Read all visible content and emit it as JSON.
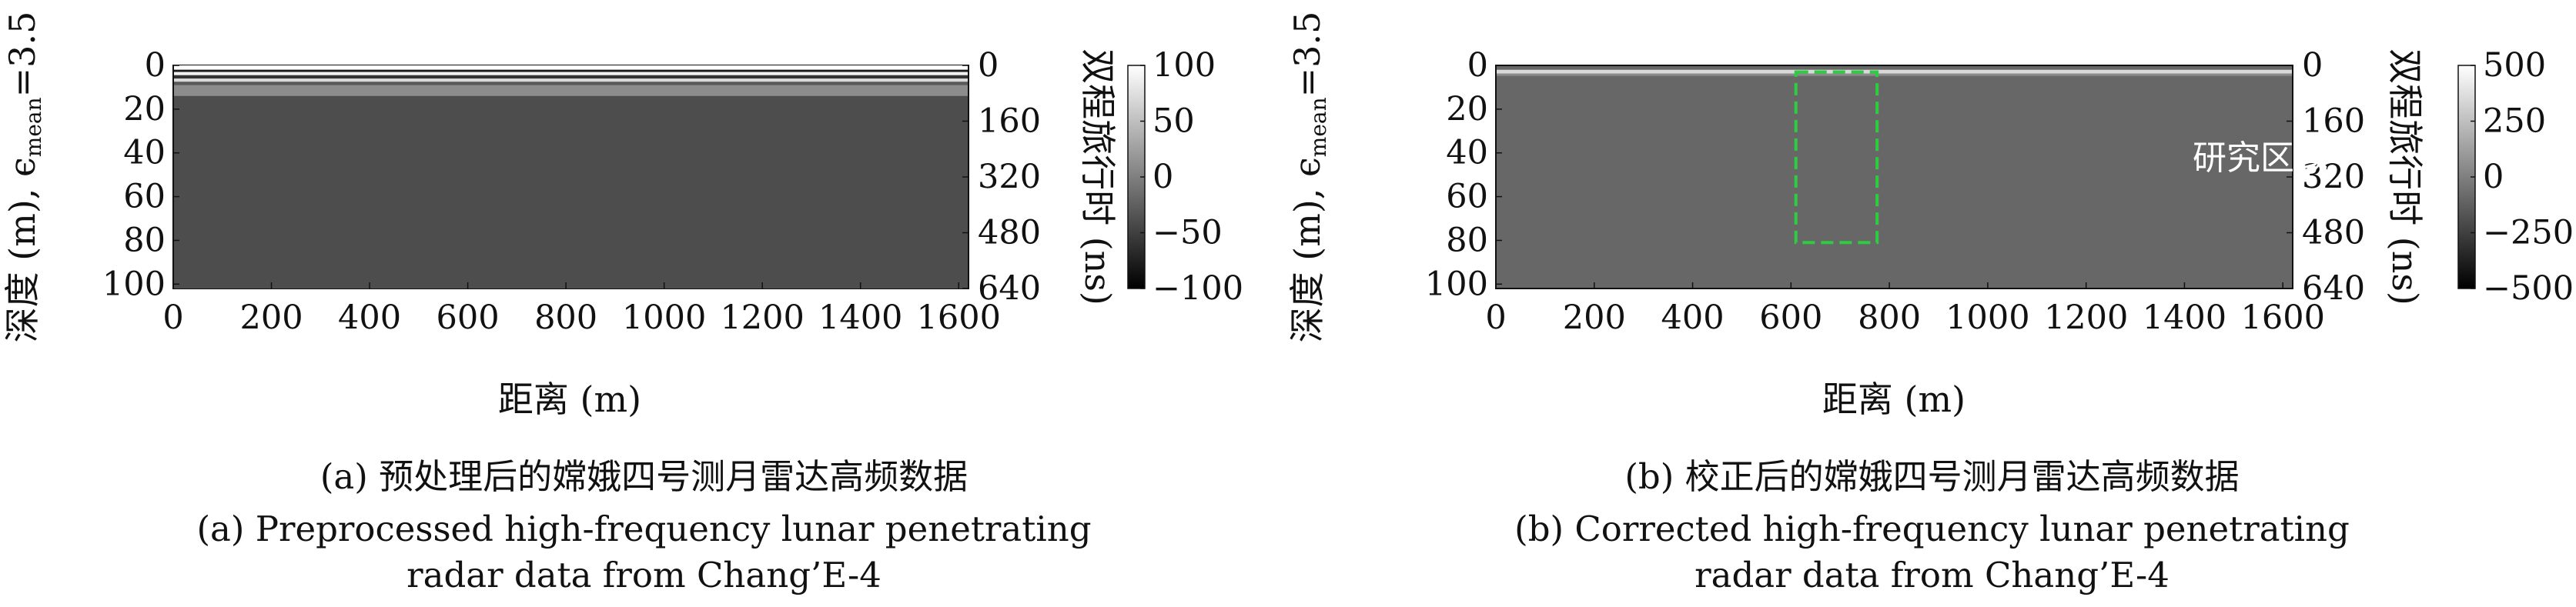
{
  "chart_data": [
    {
      "type": "heatmap",
      "panel_id": "a",
      "xlabel": "距离 (m)",
      "ylabel_left": "深度 (m), ϵ",
      "ylabel_left_sub": "mean",
      "ylabel_left_suffix": "=3.5",
      "ylabel_right": "双程旅行时 (ns)",
      "x_ticks": [
        "0",
        "200",
        "400",
        "600",
        "800",
        "1000",
        "1200",
        "1400",
        "1600"
      ],
      "y_ticks_left": [
        "0",
        "20",
        "40",
        "60",
        "80",
        "100"
      ],
      "y_ticks_right": [
        "0",
        "160",
        "320",
        "480",
        "640"
      ],
      "xlim": [
        0,
        1620
      ],
      "ylim_depth": [
        0,
        102
      ],
      "ylim_time": [
        0,
        640
      ],
      "colorbar_ticks": [
        "100",
        "50",
        "0",
        "−50",
        "−100"
      ],
      "colorbar_range": [
        -100,
        100
      ],
      "colormap": "gray",
      "description_bands": [
        {
          "depth_from": 0,
          "depth_to": 2,
          "value": 100
        },
        {
          "depth_from": 2,
          "depth_to": 3,
          "value": -80
        },
        {
          "depth_from": 3,
          "depth_to": 4.5,
          "value": 90
        },
        {
          "depth_from": 4.5,
          "depth_to": 6,
          "value": -60
        },
        {
          "depth_from": 6,
          "depth_to": 7.5,
          "value": 70
        },
        {
          "depth_from": 7.5,
          "depth_to": 9,
          "value": -30
        },
        {
          "depth_from": 9,
          "depth_to": 14,
          "value": 10
        },
        {
          "depth_from": 14,
          "depth_to": 102,
          "value": -40
        }
      ],
      "caption_cn": "(a) 预处理后的嫦娥四号测月雷达高频数据",
      "caption_en_1": "(a) Preprocessed high-frequency lunar penetrating",
      "caption_en_2": "radar data from Chang’E-4"
    },
    {
      "type": "heatmap",
      "panel_id": "b",
      "xlabel": "距离 (m)",
      "ylabel_left": "深度 (m), ϵ",
      "ylabel_left_sub": "mean",
      "ylabel_left_suffix": "=3.5",
      "ylabel_right": "双程旅行时 (ns)",
      "x_ticks": [
        "0",
        "200",
        "400",
        "600",
        "800",
        "1000",
        "1200",
        "1400",
        "1600"
      ],
      "y_ticks_left": [
        "0",
        "20",
        "40",
        "60",
        "80",
        "100"
      ],
      "y_ticks_right": [
        "0",
        "160",
        "320",
        "480",
        "640"
      ],
      "xlim": [
        0,
        1620
      ],
      "ylim_depth": [
        0,
        102
      ],
      "ylim_time": [
        0,
        640
      ],
      "colorbar_ticks": [
        "500",
        "250",
        "0",
        "−250",
        "−500"
      ],
      "colorbar_range": [
        -500,
        500
      ],
      "colormap": "gray",
      "study_region": {
        "x_from": 610,
        "x_to": 775,
        "depth_from": 3,
        "depth_to": 81,
        "color": "#2ecc40"
      },
      "annotation": "研究区域",
      "caption_cn": "(b) 校正后的嫦娥四号测月雷达高频数据",
      "caption_en_1": "(b) Corrected high-frequency lunar penetrating",
      "caption_en_2": "radar data from Chang’E-4"
    }
  ]
}
